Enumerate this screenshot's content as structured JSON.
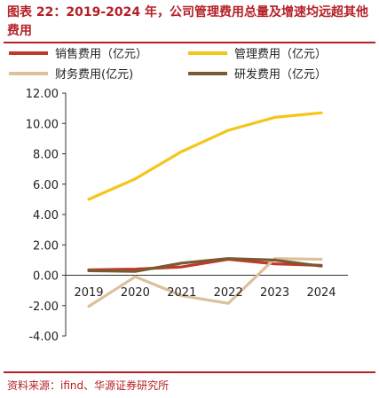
{
  "header": {
    "title": "图表 22：2019-2024 年，公司管理费用总量及增速均远超其他费用"
  },
  "footer": {
    "source": "资料来源：ifind、华源证券研究所"
  },
  "chart_data": {
    "type": "line",
    "x": [
      "2019",
      "2020",
      "2021",
      "2022",
      "2023",
      "2024"
    ],
    "ylim": [
      -4,
      12
    ],
    "yticks": [
      "12.00",
      "10.00",
      "8.00",
      "6.00",
      "4.00",
      "2.00",
      "0.00",
      "-2.00",
      "-4.00"
    ],
    "ytick_values": [
      12,
      10,
      8,
      6,
      4,
      2,
      0,
      -2,
      -4
    ],
    "grid": false,
    "legend_position": "top",
    "series": [
      {
        "name": "销售费用（亿元）",
        "color": "#c0392b",
        "values": [
          0.35,
          0.4,
          0.55,
          1.05,
          0.75,
          0.65
        ]
      },
      {
        "name": "管理费用（亿元）",
        "color": "#f5c518",
        "values": [
          5.0,
          6.35,
          8.15,
          9.55,
          10.4,
          10.7
        ]
      },
      {
        "name": "财务费用(亿元)",
        "color": "#dcc09c",
        "values": [
          -2.05,
          -0.1,
          -1.35,
          -1.85,
          1.1,
          1.05
        ]
      },
      {
        "name": "研发费用（亿元）",
        "color": "#7a5a32",
        "values": [
          0.3,
          0.25,
          0.8,
          1.1,
          1.0,
          0.6
        ]
      }
    ]
  }
}
